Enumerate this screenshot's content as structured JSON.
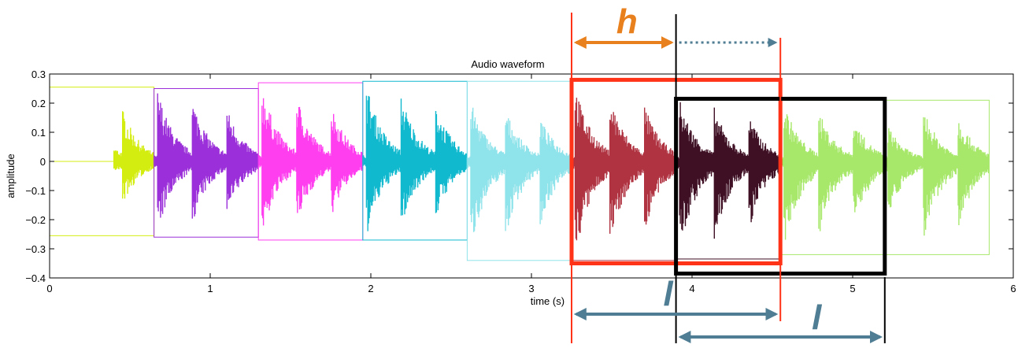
{
  "chart_data": {
    "type": "line",
    "title": "Audio waveform",
    "xlabel": "time (s)",
    "ylabel": "amplitude",
    "xlim": [
      0,
      6
    ],
    "ylim": [
      -0.4,
      0.3
    ],
    "x_ticks": [
      0,
      1,
      2,
      3,
      4,
      5,
      6
    ],
    "y_ticks": [
      -0.4,
      -0.3,
      -0.2,
      -0.1,
      0,
      0.1,
      0.2,
      0.3
    ],
    "x_tick_labels": [
      "0",
      "1",
      "2",
      "3",
      "4",
      "5",
      "6"
    ],
    "y_tick_labels": [
      "−0.4",
      "−0.3",
      "−0.2",
      "−0.1",
      "0",
      "0.1",
      "0.2",
      "0.3"
    ],
    "grid": false,
    "segments": [
      {
        "x0": 0.0,
        "x1": 0.65,
        "color": "#d4ed10",
        "peak": 0.25,
        "trough": -0.21,
        "box_top": 0.255,
        "box_bottom": -0.255
      },
      {
        "x0": 0.65,
        "x1": 1.3,
        "color": "#9b2fd9",
        "peak": 0.255,
        "trough": -0.255,
        "box_top": 0.25,
        "box_bottom": -0.26
      },
      {
        "x0": 1.3,
        "x1": 1.95,
        "color": "#ff3ef0",
        "peak": 0.27,
        "trough": -0.265,
        "box_top": 0.27,
        "box_bottom": -0.27
      },
      {
        "x0": 1.95,
        "x1": 2.6,
        "color": "#11b9cf",
        "peak": 0.275,
        "trough": -0.27,
        "box_top": 0.275,
        "box_bottom": -0.27
      },
      {
        "x0": 2.6,
        "x1": 3.25,
        "color": "#8fe3ea",
        "peak": 0.215,
        "trough": -0.31,
        "box_top": 0.275,
        "box_bottom": -0.34
      },
      {
        "x0": 3.25,
        "x1": 3.9,
        "color": "#b03342",
        "peak": 0.27,
        "trough": -0.34,
        "box_top": 0.28,
        "box_bottom": -0.34
      },
      {
        "x0": 3.9,
        "x1": 4.55,
        "color": "#3f0f23",
        "peak": 0.22,
        "trough": -0.33,
        "box_top": 0.215,
        "box_bottom": -0.335
      },
      {
        "x0": 4.55,
        "x1": 5.85,
        "color": "#a7e86a",
        "peak": 0.21,
        "trough": -0.32,
        "box_top": 0.21,
        "box_bottom": -0.32
      }
    ],
    "highlight_windows": [
      {
        "x0": 3.25,
        "x1": 4.55,
        "color": "#ff3318",
        "top": 0.28,
        "bottom": -0.35
      },
      {
        "x0": 3.9,
        "x1": 5.2,
        "color": "#000000",
        "top": 0.215,
        "bottom": -0.385
      }
    ],
    "annotations": {
      "hop_label": "h",
      "length_label_1": "l",
      "length_label_2": "l",
      "hop_color": "#e8801d",
      "length_color": "#4f7d93",
      "window_line_color": "#ff3318"
    }
  }
}
